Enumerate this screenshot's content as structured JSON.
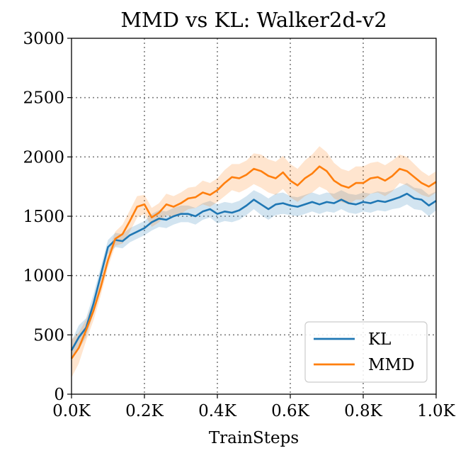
{
  "chart_data": {
    "type": "line",
    "title": "MMD vs KL: Walker2d-v2",
    "xlabel": "TrainSteps",
    "ylabel": "",
    "xlim": [
      0,
      1.0
    ],
    "ylim": [
      0,
      3000
    ],
    "x_ticks": [
      0,
      0.2,
      0.4,
      0.6,
      0.8,
      1.0
    ],
    "x_tick_labels": [
      "0.0K",
      "0.2K",
      "0.4K",
      "0.6K",
      "0.8K",
      "1.0K"
    ],
    "y_ticks": [
      0,
      500,
      1000,
      1500,
      2000,
      2500,
      3000
    ],
    "y_tick_labels": [
      "0",
      "500",
      "1000",
      "1500",
      "2000",
      "2500",
      "3000"
    ],
    "grid": true,
    "legend_position": "bottom-right",
    "x": [
      0.0,
      0.02,
      0.04,
      0.06,
      0.08,
      0.1,
      0.12,
      0.14,
      0.16,
      0.18,
      0.2,
      0.22,
      0.24,
      0.26,
      0.28,
      0.3,
      0.32,
      0.34,
      0.36,
      0.38,
      0.4,
      0.42,
      0.44,
      0.46,
      0.48,
      0.5,
      0.52,
      0.54,
      0.56,
      0.58,
      0.6,
      0.62,
      0.64,
      0.66,
      0.68,
      0.7,
      0.72,
      0.74,
      0.76,
      0.78,
      0.8,
      0.82,
      0.84,
      0.86,
      0.88,
      0.9,
      0.92,
      0.94,
      0.96,
      0.98,
      1.0
    ],
    "series": [
      {
        "name": "KL",
        "color": "#1f77b4",
        "values": [
          370,
          480,
          560,
          760,
          1000,
          1240,
          1300,
          1290,
          1340,
          1370,
          1400,
          1450,
          1480,
          1470,
          1500,
          1520,
          1520,
          1500,
          1540,
          1560,
          1520,
          1540,
          1530,
          1550,
          1590,
          1640,
          1600,
          1560,
          1600,
          1610,
          1590,
          1580,
          1600,
          1620,
          1600,
          1620,
          1610,
          1640,
          1610,
          1600,
          1620,
          1610,
          1630,
          1620,
          1640,
          1660,
          1690,
          1650,
          1640,
          1590,
          1630
        ],
        "band": [
          80,
          100,
          80,
          80,
          70,
          60,
          60,
          60,
          60,
          60,
          60,
          70,
          70,
          70,
          70,
          70,
          70,
          70,
          70,
          70,
          80,
          80,
          80,
          80,
          80,
          80,
          90,
          90,
          90,
          90,
          80,
          80,
          80,
          80,
          80,
          80,
          80,
          80,
          80,
          80,
          80,
          80,
          80,
          80,
          80,
          90,
          90,
          90,
          90,
          90,
          80
        ]
      },
      {
        "name": "MMD",
        "color": "#ff7f0e",
        "values": [
          300,
          390,
          540,
          700,
          900,
          1130,
          1310,
          1350,
          1460,
          1580,
          1600,
          1490,
          1530,
          1600,
          1580,
          1610,
          1650,
          1660,
          1700,
          1680,
          1720,
          1780,
          1830,
          1820,
          1850,
          1900,
          1880,
          1840,
          1820,
          1870,
          1800,
          1760,
          1820,
          1860,
          1920,
          1880,
          1800,
          1760,
          1740,
          1780,
          1780,
          1820,
          1830,
          1800,
          1840,
          1900,
          1880,
          1830,
          1780,
          1750,
          1790
        ],
        "band": [
          160,
          130,
          90,
          80,
          70,
          60,
          60,
          80,
          90,
          90,
          80,
          80,
          80,
          90,
          90,
          90,
          90,
          90,
          100,
          100,
          100,
          110,
          110,
          120,
          120,
          130,
          140,
          140,
          140,
          140,
          140,
          140,
          150,
          160,
          170,
          160,
          150,
          140,
          140,
          140,
          140,
          130,
          130,
          130,
          130,
          120,
          120,
          110,
          100,
          90,
          90
        ]
      }
    ]
  }
}
